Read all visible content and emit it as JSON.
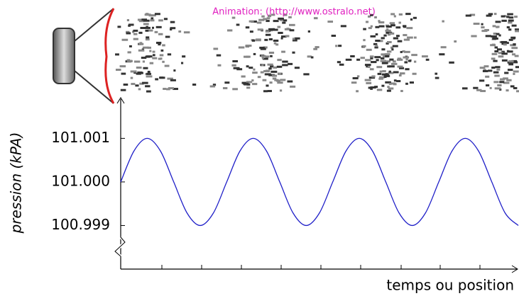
{
  "chart_data": {
    "type": "line",
    "annotation": "Animation: (http://www.ostralo.net)",
    "ylabel": "pression (kPA)",
    "xlabel": "temps ou position",
    "ylim": [
      100.998,
      101.0019
    ],
    "yticks": [
      {
        "value": 100.999,
        "label": "100.999"
      },
      {
        "value": 101.0,
        "label": "101.000"
      },
      {
        "value": 101.001,
        "label": "101.001"
      }
    ],
    "color": "#1f1fc8",
    "values": [
      101.0,
      101.00071,
      101.001,
      101.00071,
      101.0,
      100.99929,
      100.999,
      100.99929,
      101.0,
      101.00071,
      101.001,
      101.00071,
      101.0,
      100.99929,
      100.999,
      100.99929,
      101.0,
      101.00071,
      101.001,
      101.00071,
      101.0,
      100.99929,
      100.999,
      100.99929,
      101.0,
      101.00071,
      101.001,
      101.00071,
      101.0,
      100.99929,
      100.999
    ]
  }
}
